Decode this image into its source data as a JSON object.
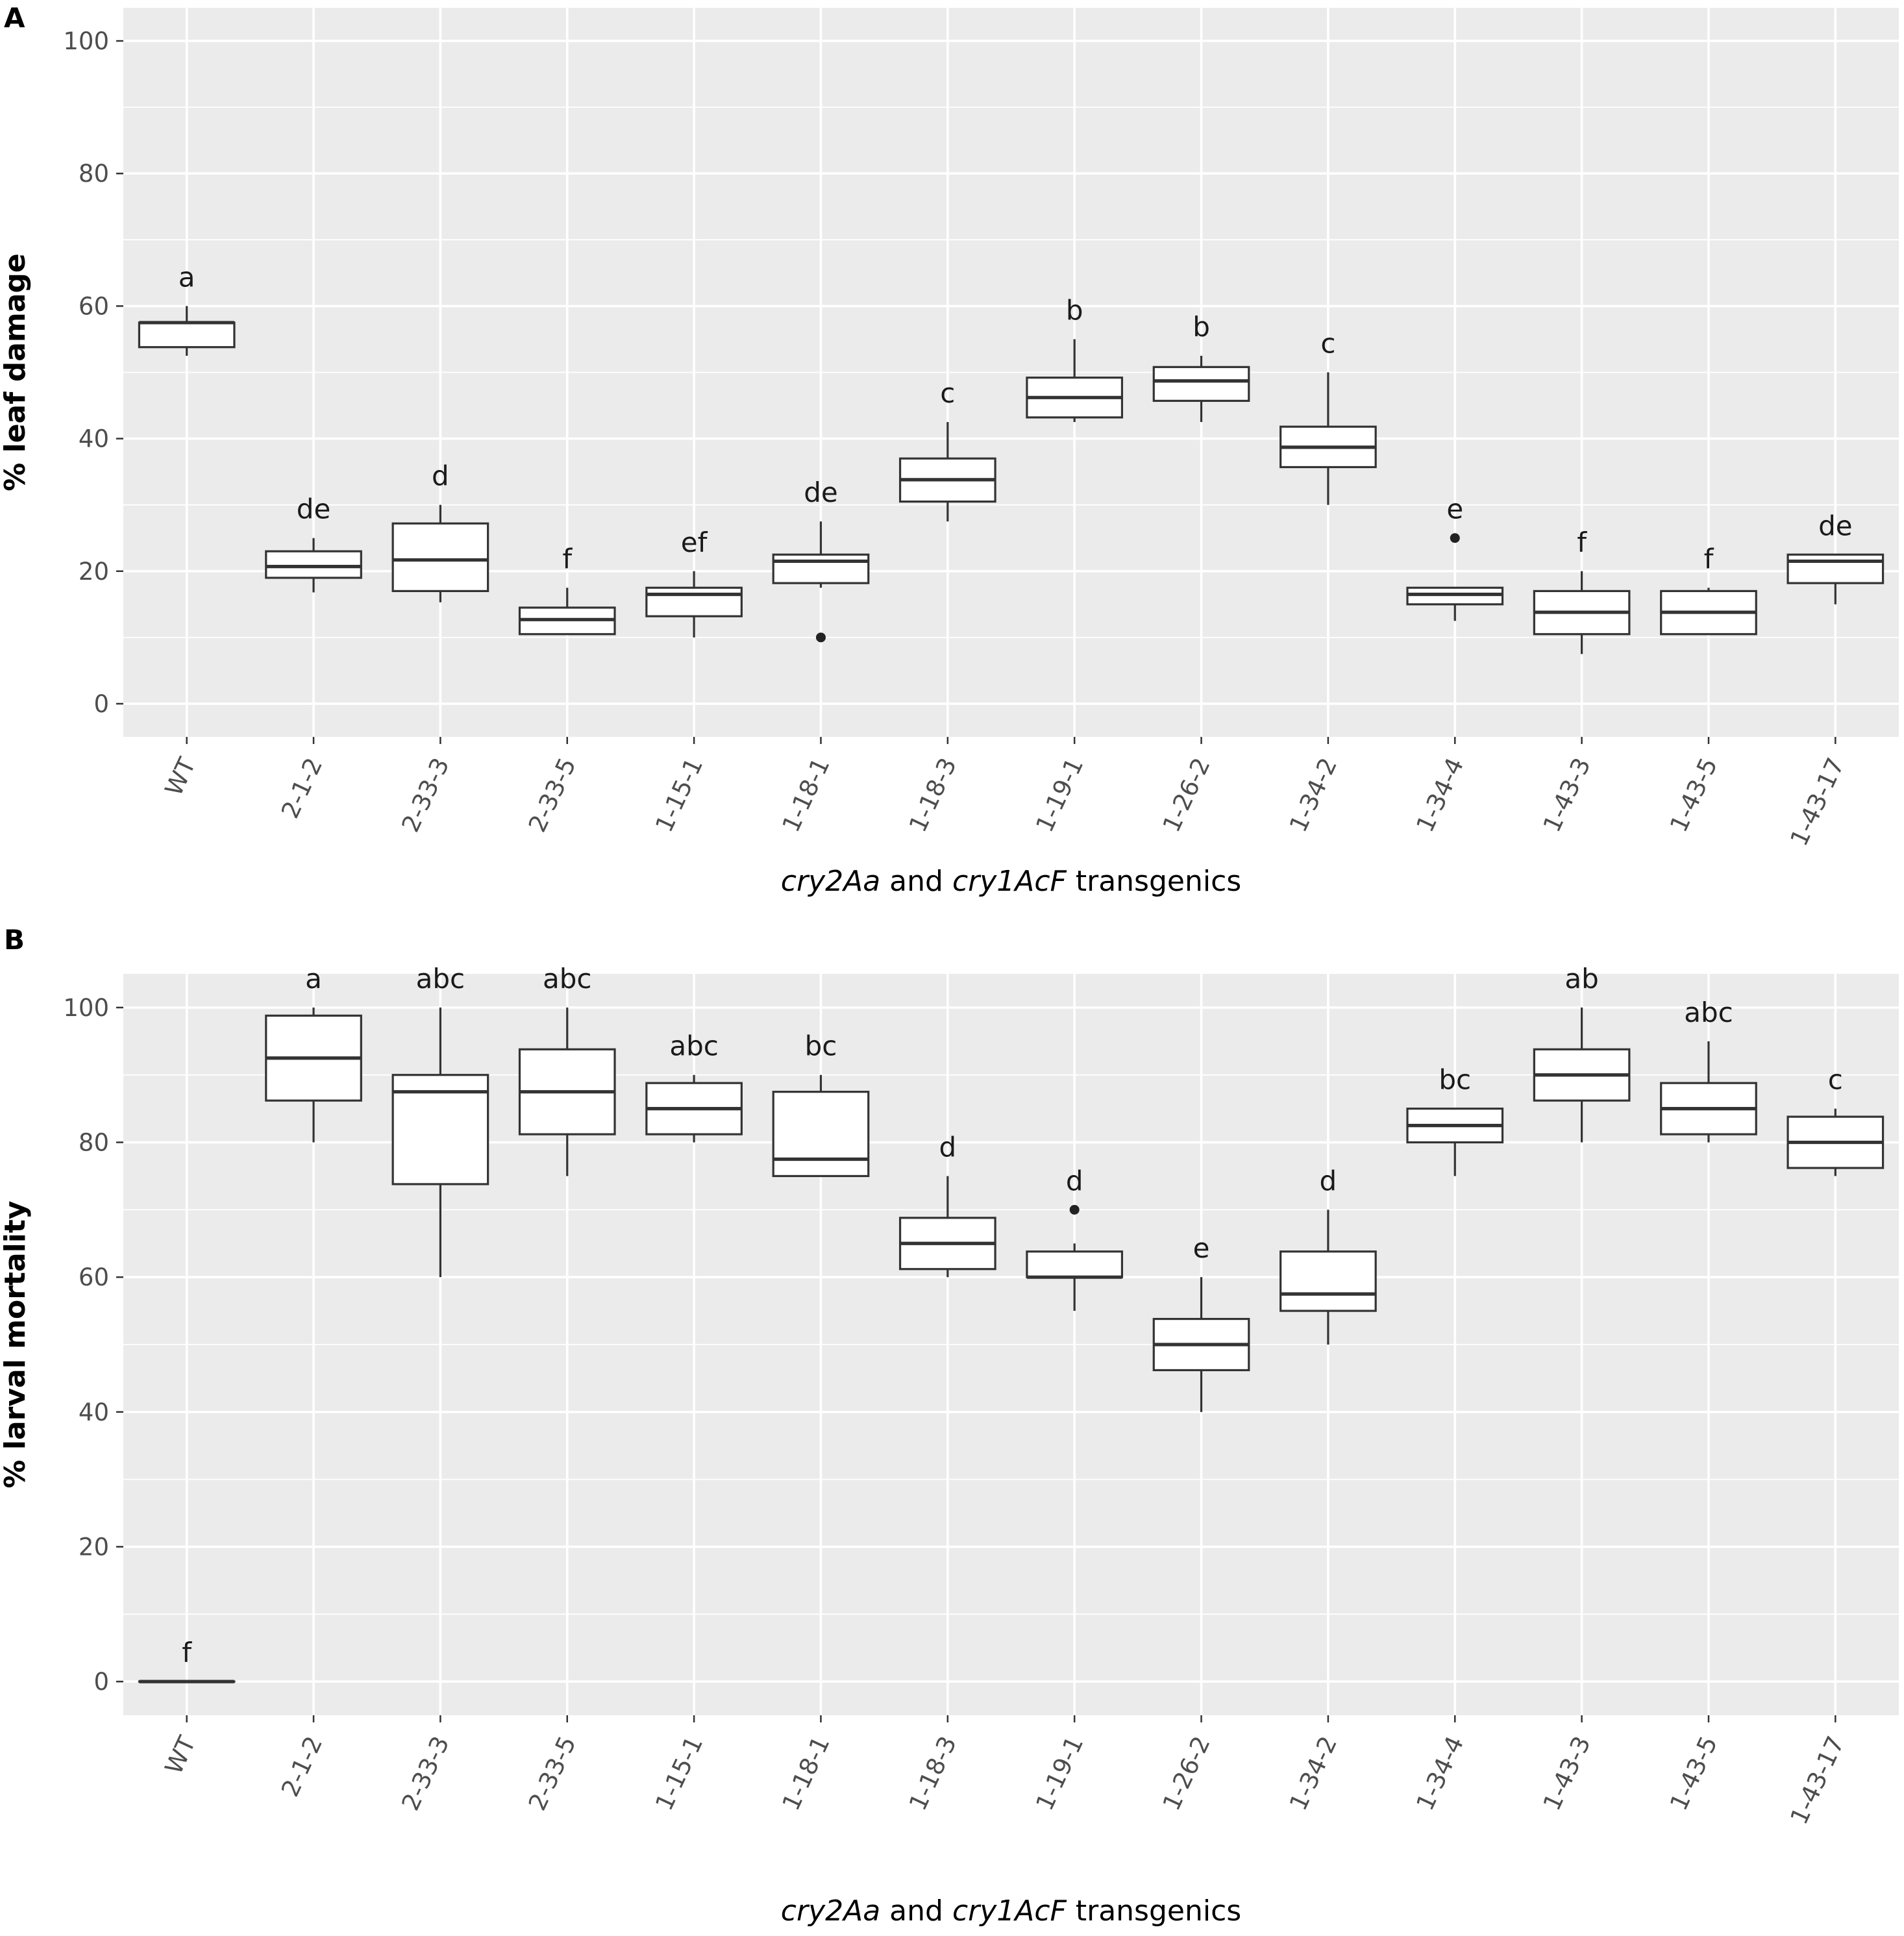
{
  "chart_data": [
    {
      "type": "box",
      "panel_label": "A",
      "ylabel": "% leaf damage",
      "xlabel_parts": [
        {
          "text": "cry2Aa",
          "italic": true
        },
        {
          "text": " and ",
          "italic": false
        },
        {
          "text": "cry1AcF",
          "italic": true
        },
        {
          "text": " transgenics",
          "italic": false
        }
      ],
      "ylim": [
        -5,
        105
      ],
      "yticks": [
        0,
        20,
        40,
        60,
        80,
        100
      ],
      "grid": true,
      "categories": [
        "WT",
        "2-1-2",
        "2-33-3",
        "2-33-5",
        "1-15-1",
        "1-18-1",
        "1-18-3",
        "1-19-1",
        "1-26-2",
        "1-34-2",
        "1-34-4",
        "1-43-3",
        "1-43-5",
        "1-43-17"
      ],
      "boxes": [
        {
          "min": 52.5,
          "q1": 53.8,
          "median": 57.5,
          "q3": 57.5,
          "max": 60,
          "outliers": [],
          "letter": "a"
        },
        {
          "min": 16.8,
          "q1": 19.0,
          "median": 20.7,
          "q3": 23.0,
          "max": 25,
          "outliers": [],
          "letter": "de"
        },
        {
          "min": 15.3,
          "q1": 17.0,
          "median": 21.7,
          "q3": 27.2,
          "max": 30,
          "outliers": [],
          "letter": "d"
        },
        {
          "min": 10.5,
          "q1": 10.5,
          "median": 12.7,
          "q3": 14.5,
          "max": 17.5,
          "outliers": [],
          "letter": "f"
        },
        {
          "min": 10.0,
          "q1": 13.2,
          "median": 16.5,
          "q3": 17.5,
          "max": 20,
          "outliers": [],
          "letter": "ef"
        },
        {
          "min": 17.5,
          "q1": 18.2,
          "median": 21.5,
          "q3": 22.5,
          "max": 27.5,
          "outliers": [
            10
          ],
          "letter": "de"
        },
        {
          "min": 27.5,
          "q1": 30.5,
          "median": 33.8,
          "q3": 37.0,
          "max": 42.5,
          "outliers": [],
          "letter": "c"
        },
        {
          "min": 42.5,
          "q1": 43.2,
          "median": 46.2,
          "q3": 49.2,
          "max": 55,
          "outliers": [],
          "letter": "b"
        },
        {
          "min": 42.5,
          "q1": 45.7,
          "median": 48.7,
          "q3": 50.8,
          "max": 52.5,
          "outliers": [],
          "letter": "b"
        },
        {
          "min": 30.0,
          "q1": 35.7,
          "median": 38.7,
          "q3": 41.8,
          "max": 50,
          "outliers": [],
          "letter": "c"
        },
        {
          "min": 12.5,
          "q1": 15.0,
          "median": 16.5,
          "q3": 17.5,
          "max": 17.5,
          "outliers": [
            25
          ],
          "letter": "e"
        },
        {
          "min": 7.5,
          "q1": 10.5,
          "median": 13.8,
          "q3": 17.0,
          "max": 20,
          "outliers": [],
          "letter": "f"
        },
        {
          "min": 10.5,
          "q1": 10.5,
          "median": 13.8,
          "q3": 17.0,
          "max": 17.5,
          "outliers": [],
          "letter": "f"
        },
        {
          "min": 15.0,
          "q1": 18.2,
          "median": 21.5,
          "q3": 22.5,
          "max": 22.5,
          "outliers": [],
          "letter": "de"
        }
      ]
    },
    {
      "type": "box",
      "panel_label": "B",
      "ylabel": "% larval mortality",
      "xlabel_parts": [
        {
          "text": "cry2Aa",
          "italic": true
        },
        {
          "text": " and ",
          "italic": false
        },
        {
          "text": "cry1AcF",
          "italic": true
        },
        {
          "text": " transgenics",
          "italic": false
        }
      ],
      "ylim": [
        -5,
        105
      ],
      "yticks": [
        0,
        20,
        40,
        60,
        80,
        100
      ],
      "grid": true,
      "categories": [
        "WT",
        "2-1-2",
        "2-33-3",
        "2-33-5",
        "1-15-1",
        "1-18-1",
        "1-18-3",
        "1-19-1",
        "1-26-2",
        "1-34-2",
        "1-34-4",
        "1-43-3",
        "1-43-5",
        "1-43-17"
      ],
      "boxes": [
        {
          "min": 0,
          "q1": 0,
          "median": 0,
          "q3": 0,
          "max": 0,
          "outliers": [],
          "letter": "f"
        },
        {
          "min": 80,
          "q1": 86.2,
          "median": 92.5,
          "q3": 98.8,
          "max": 100,
          "outliers": [],
          "letter": "a"
        },
        {
          "min": 60,
          "q1": 73.8,
          "median": 87.5,
          "q3": 90.0,
          "max": 100,
          "outliers": [],
          "letter": "abc"
        },
        {
          "min": 75,
          "q1": 81.2,
          "median": 87.5,
          "q3": 93.8,
          "max": 100,
          "outliers": [],
          "letter": "abc"
        },
        {
          "min": 80,
          "q1": 81.2,
          "median": 85.0,
          "q3": 88.8,
          "max": 90,
          "outliers": [],
          "letter": "abc"
        },
        {
          "min": 75,
          "q1": 75.0,
          "median": 77.5,
          "q3": 87.5,
          "max": 90,
          "outliers": [],
          "letter": "bc"
        },
        {
          "min": 60,
          "q1": 61.2,
          "median": 65.0,
          "q3": 68.8,
          "max": 75,
          "outliers": [],
          "letter": "d"
        },
        {
          "min": 55,
          "q1": 60.0,
          "median": 60.0,
          "q3": 63.8,
          "max": 65,
          "outliers": [
            70
          ],
          "letter": "d"
        },
        {
          "min": 40,
          "q1": 46.2,
          "median": 50.0,
          "q3": 53.8,
          "max": 60,
          "outliers": [],
          "letter": "e"
        },
        {
          "min": 50,
          "q1": 55.0,
          "median": 57.5,
          "q3": 63.8,
          "max": 70,
          "outliers": [],
          "letter": "d"
        },
        {
          "min": 75,
          "q1": 80.0,
          "median": 82.5,
          "q3": 85.0,
          "max": 85,
          "outliers": [],
          "letter": "bc"
        },
        {
          "min": 80,
          "q1": 86.2,
          "median": 90.0,
          "q3": 93.8,
          "max": 100,
          "outliers": [],
          "letter": "ab"
        },
        {
          "min": 80,
          "q1": 81.2,
          "median": 85.0,
          "q3": 88.8,
          "max": 95,
          "outliers": [],
          "letter": "abc"
        },
        {
          "min": 75,
          "q1": 76.2,
          "median": 80.0,
          "q3": 83.8,
          "max": 85,
          "outliers": [],
          "letter": "c"
        }
      ]
    }
  ]
}
